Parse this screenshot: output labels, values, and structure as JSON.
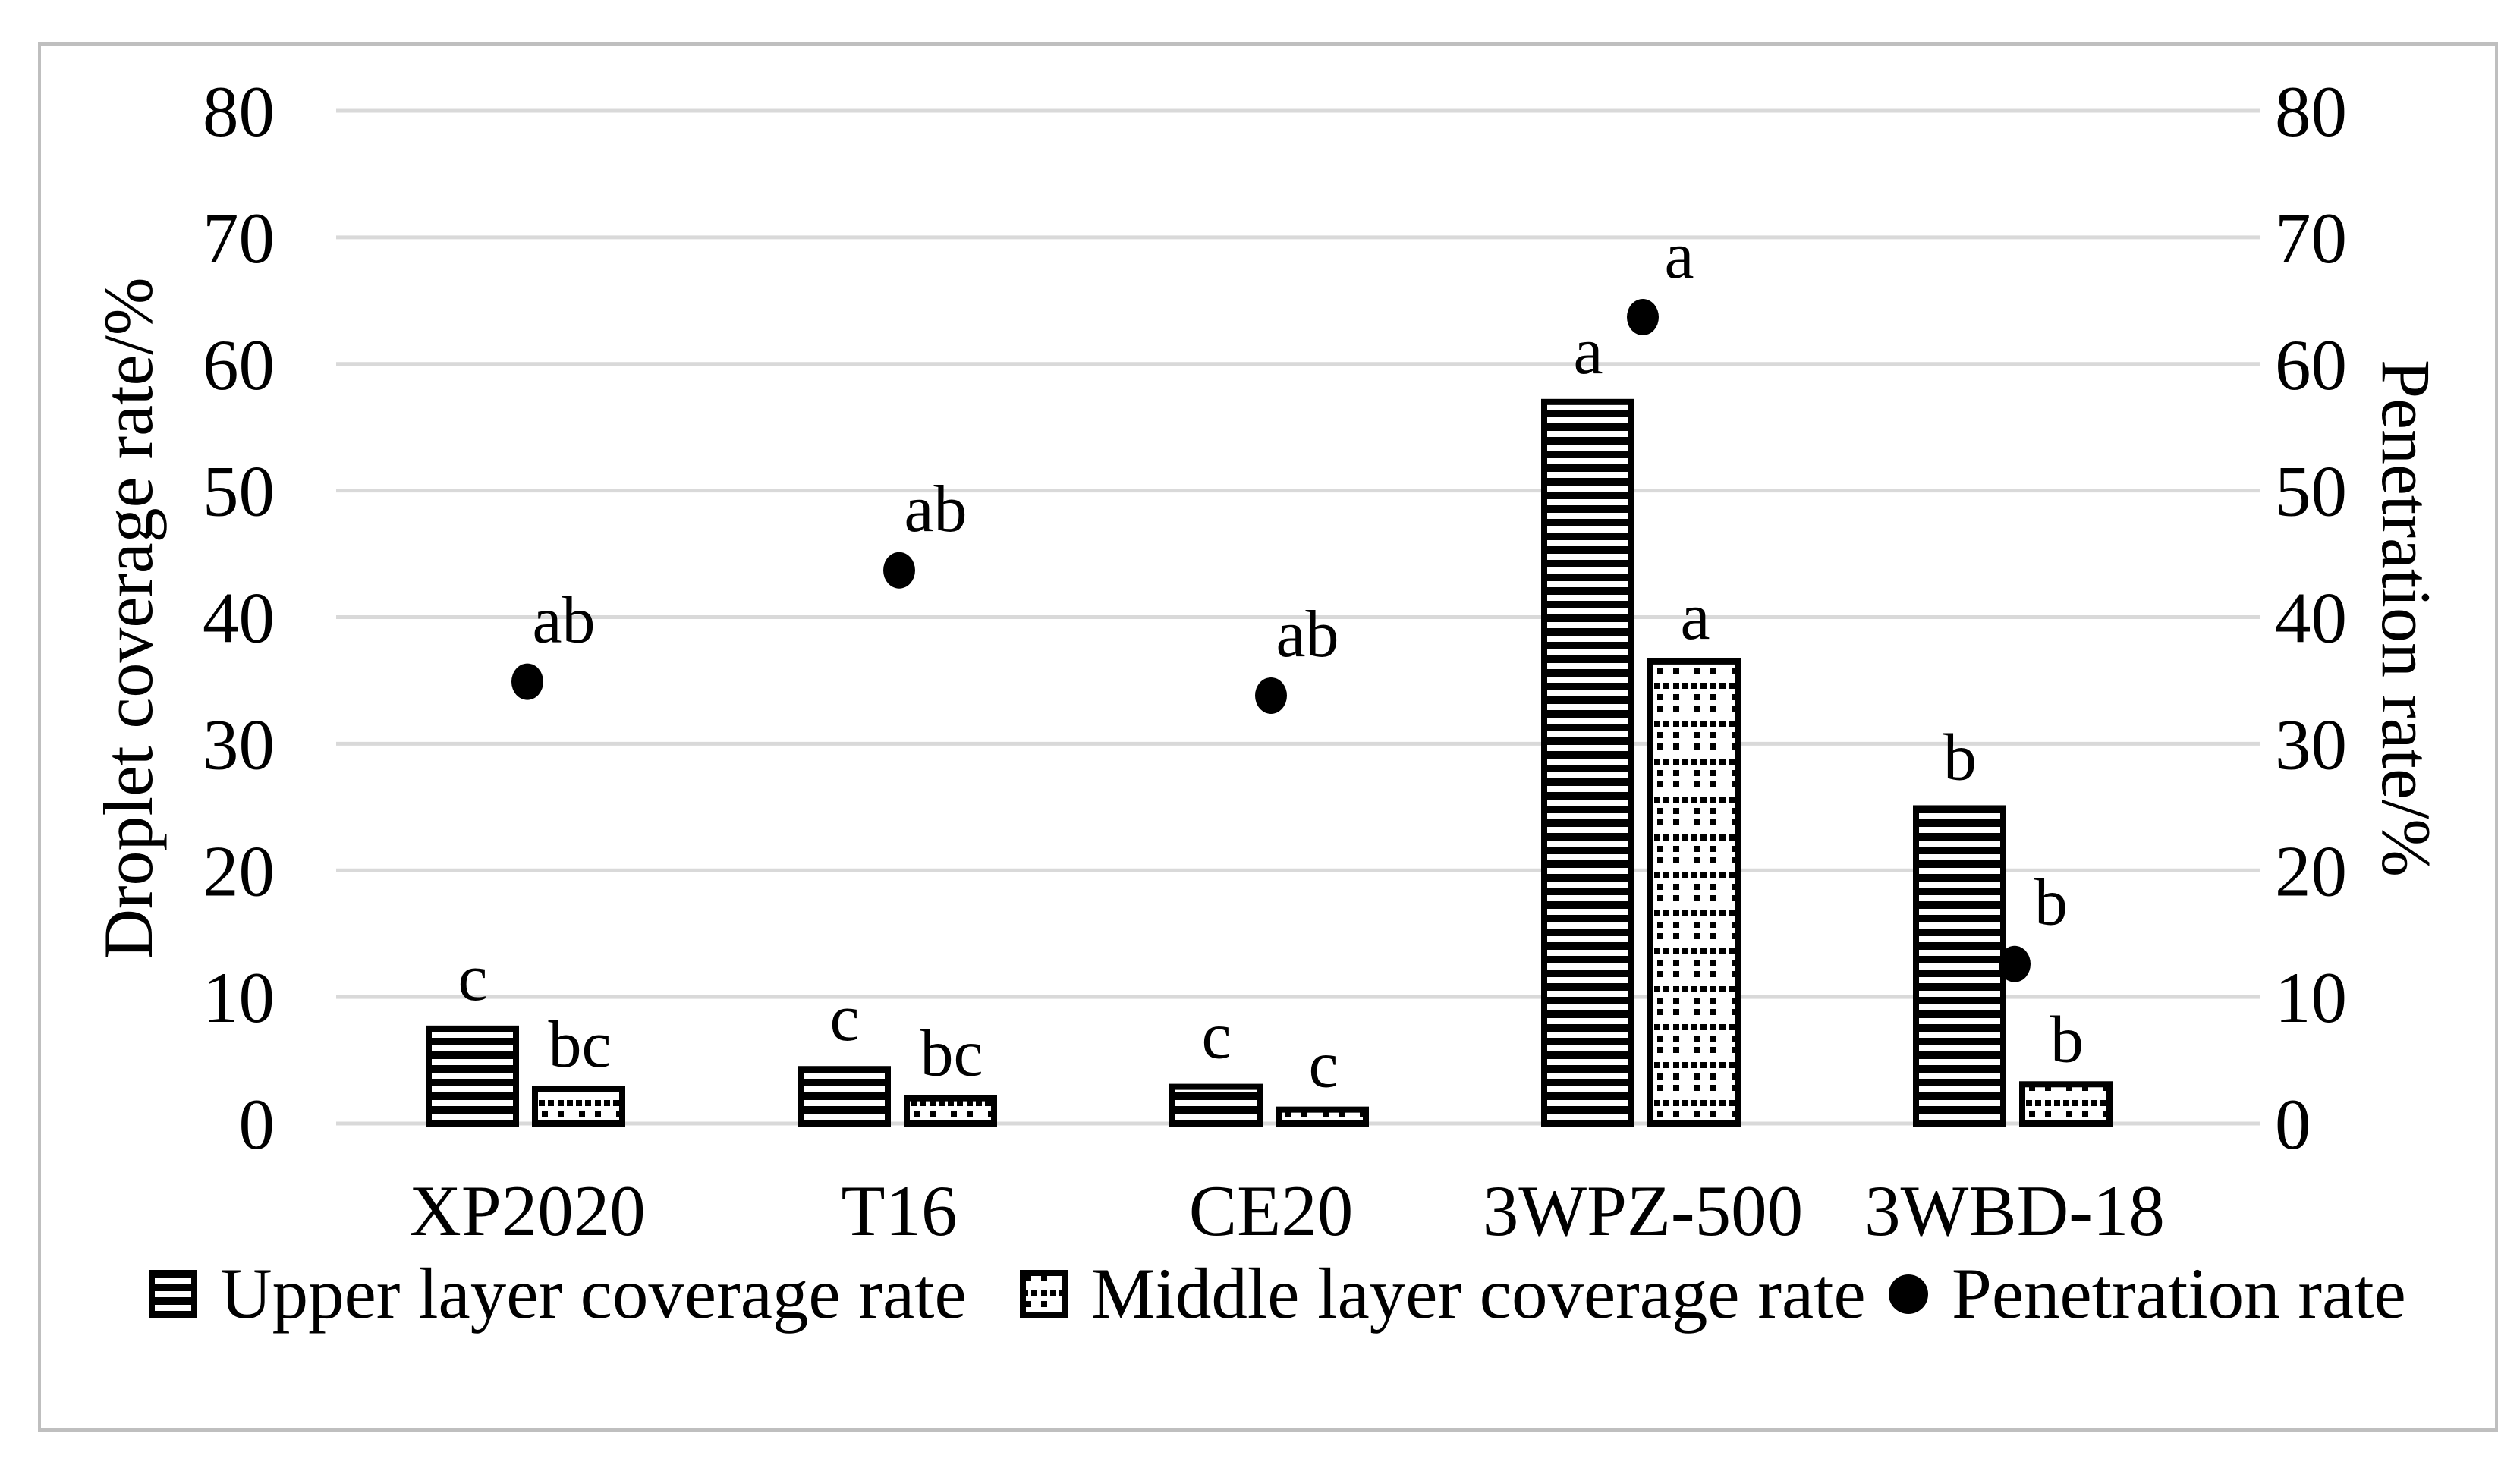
{
  "chart_data": {
    "type": "bar",
    "subtype": "grouped-bar-with-scatter-overlay",
    "categories": [
      "XP2020",
      "T16",
      "CE20",
      "3WPZ-500",
      "3WBD-18"
    ],
    "series": [
      {
        "name": "Upper layer coverage rate",
        "type": "bar",
        "axis": "left",
        "pattern": "horizontal-stripes",
        "values": [
          7.5,
          4.3,
          2.9,
          57.0,
          24.9
        ],
        "sig_labels": [
          "c",
          "c",
          "c",
          "a",
          "b"
        ]
      },
      {
        "name": "Middle layer coverage rate",
        "type": "bar",
        "axis": "left",
        "pattern": "dotted-grid",
        "values": [
          2.7,
          2.0,
          1.1,
          36.5,
          3.1
        ],
        "sig_labels": [
          "bc",
          "bc",
          "c",
          "a",
          "b"
        ]
      },
      {
        "name": "Penetration rate",
        "type": "scatter",
        "axis": "right",
        "marker": "filled-circle",
        "values": [
          34.9,
          43.7,
          33.8,
          63.7,
          12.6
        ],
        "sig_labels": [
          "ab",
          "ab",
          "ab",
          "a",
          "b"
        ]
      }
    ],
    "y_left": {
      "label": "Droplet coverage rate/%",
      "min": 0,
      "max": 80,
      "step": 10,
      "ticks": [
        "0",
        "10",
        "20",
        "30",
        "40",
        "50",
        "60",
        "70",
        "80"
      ]
    },
    "y_right": {
      "label": "Penetration rate/%",
      "min": 0,
      "max": 80,
      "step": 10,
      "ticks": [
        "0",
        "10",
        "20",
        "30",
        "40",
        "50",
        "60",
        "70",
        "80"
      ]
    },
    "grid": true,
    "legend_position": "bottom",
    "colors": {
      "series": "#000000",
      "gridline": "#d9d9d9",
      "background": "#ffffff",
      "figure_border": "#bfbfbf"
    }
  }
}
